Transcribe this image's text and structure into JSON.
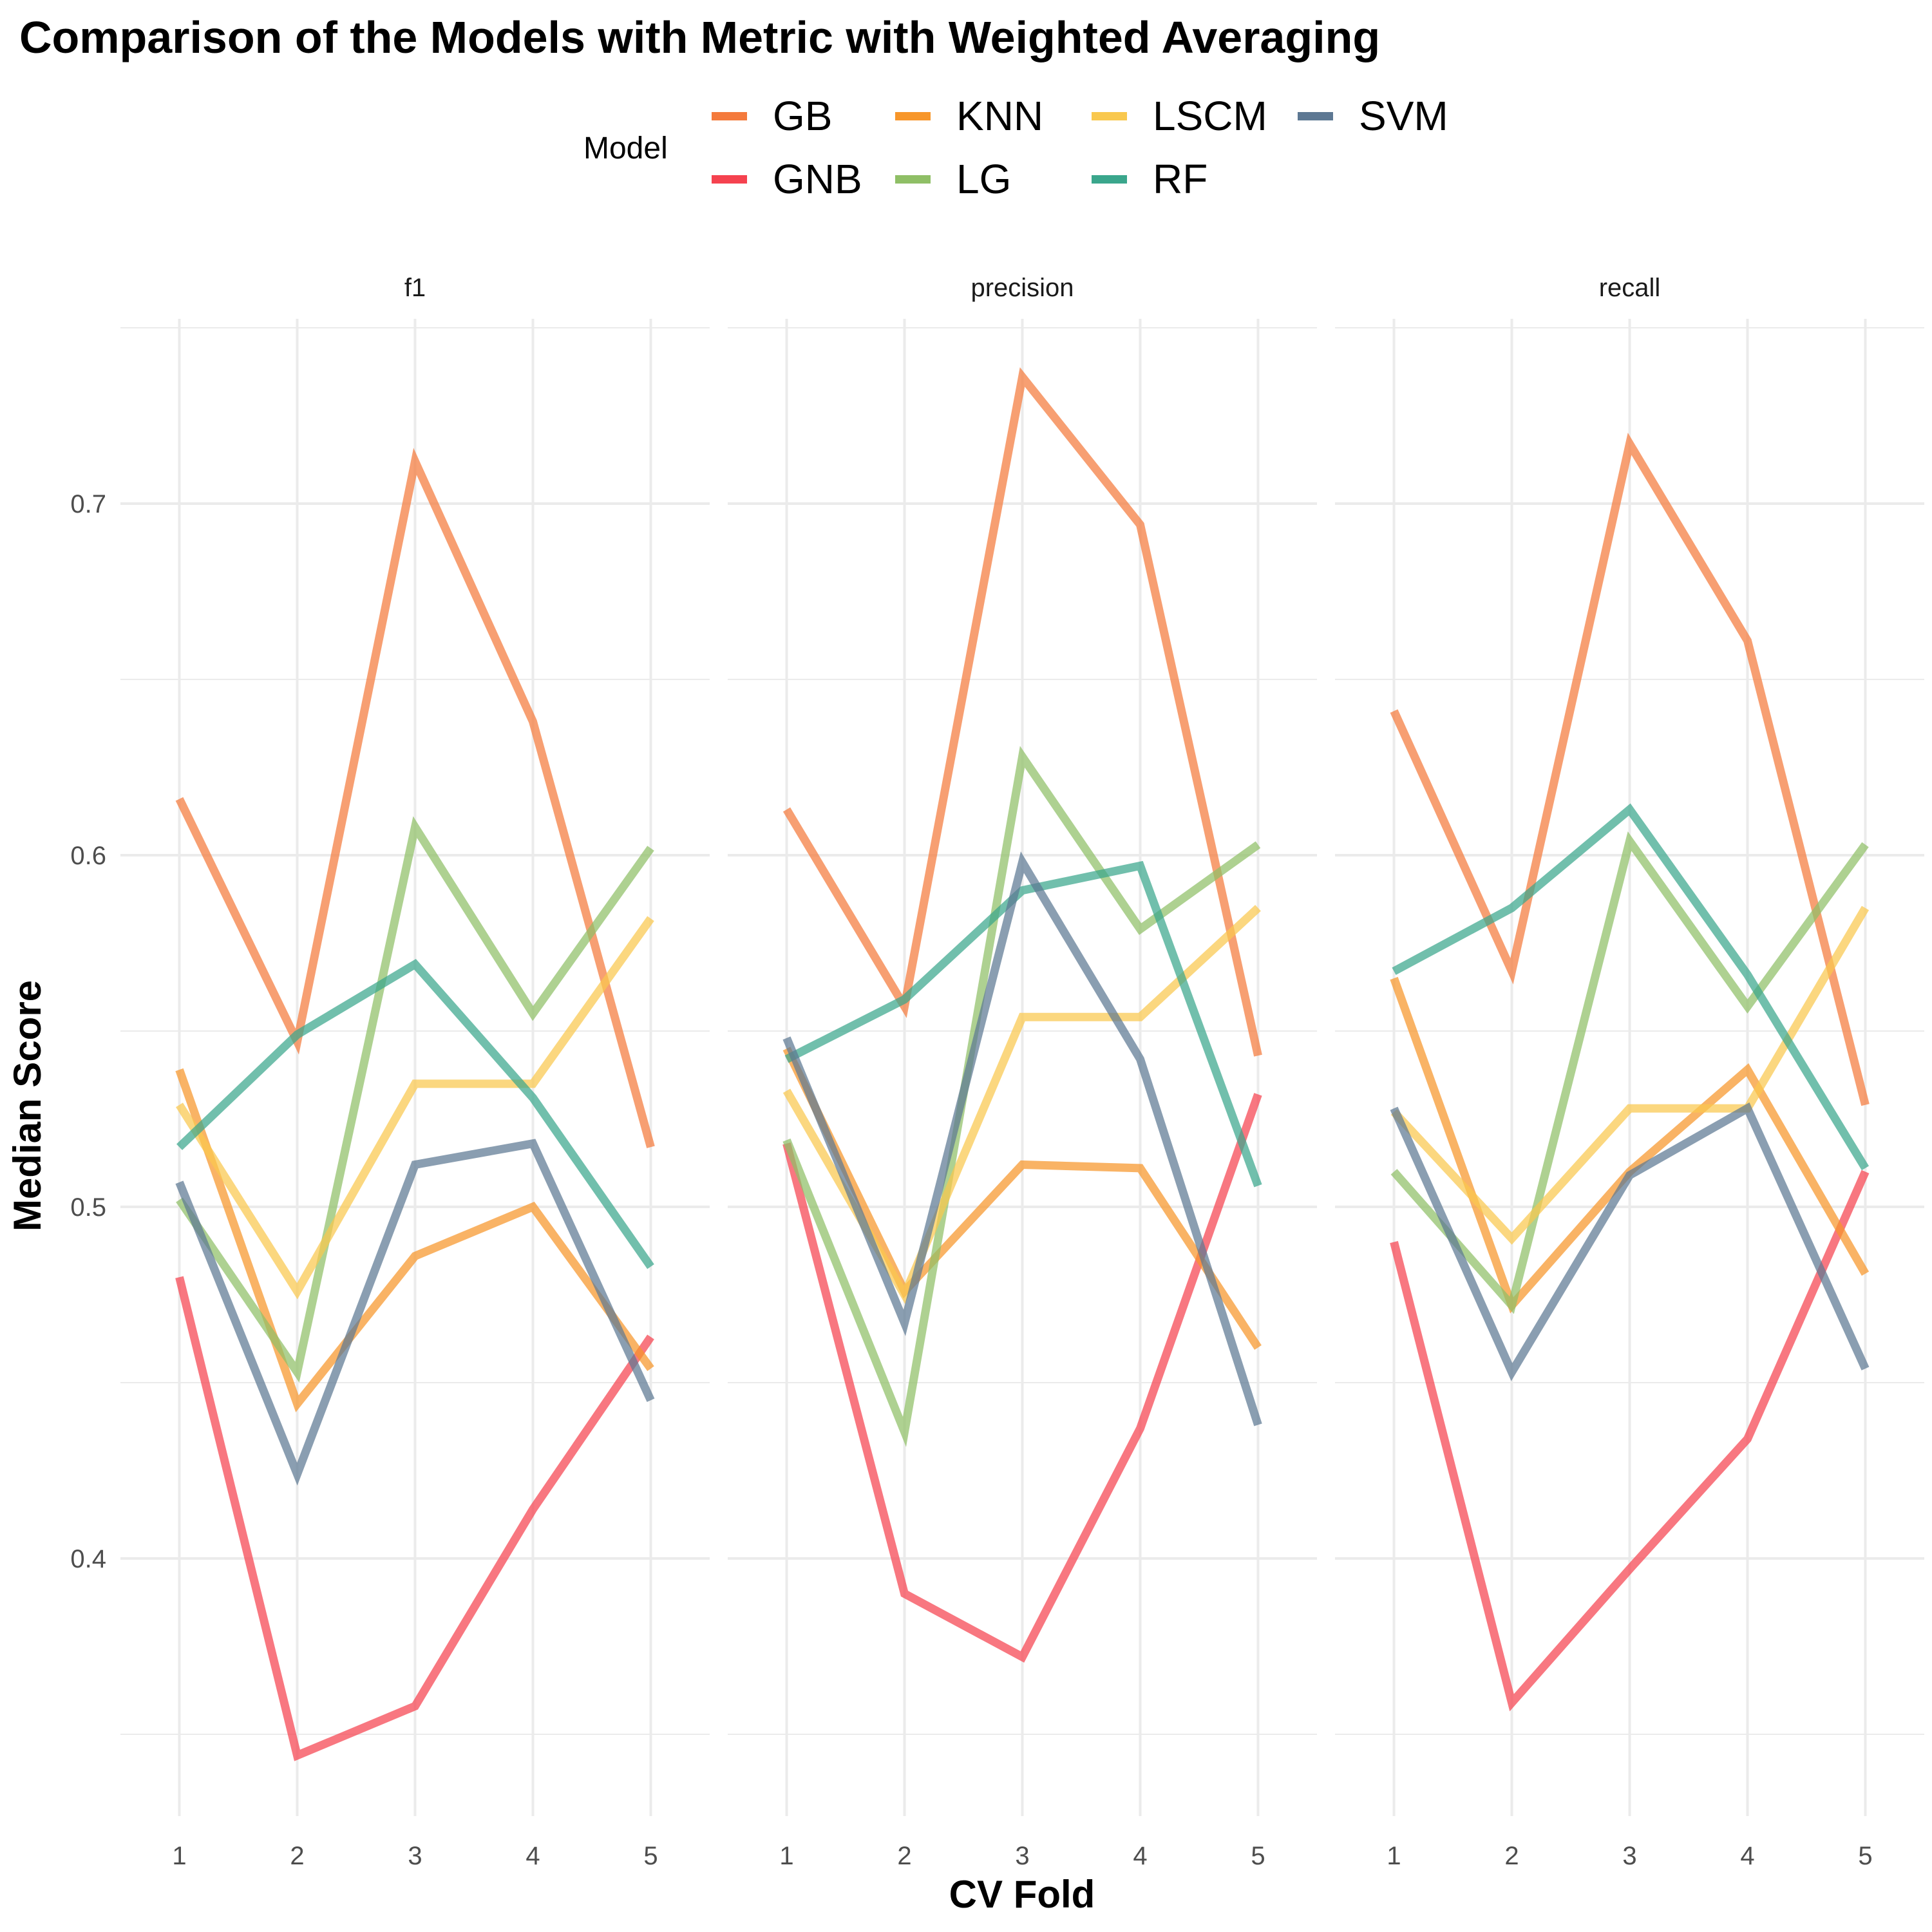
{
  "chart_data": {
    "type": "line",
    "title": "Comparison of the Models with Metric with Weighted Averaging",
    "xlabel": "CV Fold",
    "ylabel": "Median Score",
    "legend_title": "Model",
    "legend_position": "top",
    "grid": true,
    "x": [
      1,
      2,
      3,
      4,
      5
    ],
    "x_tick_labels": [
      "1",
      "2",
      "3",
      "4",
      "5"
    ],
    "y_ticks": [
      0.4,
      0.5,
      0.6,
      0.7
    ],
    "y_tick_labels": [
      "0.4",
      "0.5",
      "0.6",
      "0.7"
    ],
    "ylim": [
      0.325,
      0.75
    ],
    "xlim": [
      0.5,
      5.5
    ],
    "panels": [
      {
        "label": "f1",
        "series": [
          {
            "name": "GB",
            "values": [
              0.616,
              0.547,
              0.712,
              0.638,
              0.517
            ]
          },
          {
            "name": "GNB",
            "values": [
              0.48,
              0.344,
              0.358,
              0.414,
              0.463
            ]
          },
          {
            "name": "KNN",
            "values": [
              0.539,
              0.444,
              0.486,
              0.5,
              0.454
            ]
          },
          {
            "name": "LG",
            "values": [
              0.502,
              0.453,
              0.608,
              0.555,
              0.602
            ]
          },
          {
            "name": "LSCM",
            "values": [
              0.529,
              0.476,
              0.535,
              0.535,
              0.582
            ]
          },
          {
            "name": "RF",
            "values": [
              0.517,
              0.549,
              0.569,
              0.531,
              0.483
            ]
          },
          {
            "name": "SVM",
            "values": [
              0.507,
              0.424,
              0.512,
              0.518,
              0.445
            ]
          }
        ]
      },
      {
        "label": "precision",
        "series": [
          {
            "name": "GB",
            "values": [
              0.613,
              0.557,
              0.736,
              0.694,
              0.543
            ]
          },
          {
            "name": "GNB",
            "values": [
              0.518,
              0.39,
              0.372,
              0.437,
              0.532
            ]
          },
          {
            "name": "KNN",
            "values": [
              0.545,
              0.476,
              0.512,
              0.511,
              0.46
            ]
          },
          {
            "name": "LG",
            "values": [
              0.519,
              0.436,
              0.628,
              0.579,
              0.603
            ]
          },
          {
            "name": "LSCM",
            "values": [
              0.533,
              0.475,
              0.554,
              0.554,
              0.585
            ]
          },
          {
            "name": "RF",
            "values": [
              0.542,
              0.559,
              0.59,
              0.597,
              0.506
            ]
          },
          {
            "name": "SVM",
            "values": [
              0.548,
              0.467,
              0.598,
              0.542,
              0.438
            ]
          }
        ]
      },
      {
        "label": "recall",
        "series": [
          {
            "name": "GB",
            "values": [
              0.641,
              0.567,
              0.717,
              0.661,
              0.529
            ]
          },
          {
            "name": "GNB",
            "values": [
              0.49,
              0.359,
              0.397,
              0.434,
              0.51
            ]
          },
          {
            "name": "KNN",
            "values": [
              0.565,
              0.472,
              0.51,
              0.539,
              0.481
            ]
          },
          {
            "name": "LG",
            "values": [
              0.51,
              0.472,
              0.604,
              0.557,
              0.603
            ]
          },
          {
            "name": "LSCM",
            "values": [
              0.527,
              0.491,
              0.528,
              0.528,
              0.585
            ]
          },
          {
            "name": "RF",
            "values": [
              0.567,
              0.585,
              0.613,
              0.566,
              0.511
            ]
          },
          {
            "name": "SVM",
            "values": [
              0.528,
              0.453,
              0.509,
              0.528,
              0.454
            ]
          }
        ]
      }
    ],
    "colors": {
      "GB": "#F47A3C",
      "GNB": "#F5424F",
      "KNN": "#F7962A",
      "LG": "#8FBF66",
      "LSCM": "#F9C84E",
      "RF": "#3AA68C",
      "SVM": "#5D7893"
    }
  }
}
